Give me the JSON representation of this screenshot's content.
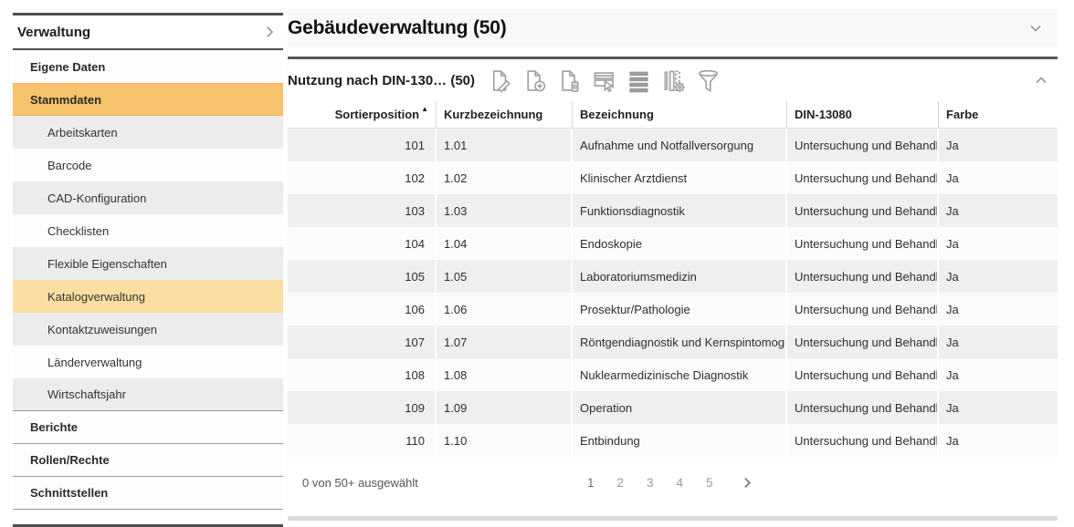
{
  "colors": {
    "selected_primary": "#f7c36d",
    "selected_secondary": "#fbdfa2",
    "row_alt_gray": "#efefef",
    "dark_rule": "#585858",
    "icon_gray": "#a3a3a3",
    "chevron_blue_gray": "#8fa0ae"
  },
  "sidebar": {
    "title": "Verwaltung",
    "items": [
      {
        "label": "Eigene Daten",
        "level": 1,
        "selected": false,
        "alt": false,
        "divider": false
      },
      {
        "label": "Stammdaten",
        "level": 1,
        "selected": true,
        "alt": false,
        "divider": false
      },
      {
        "label": "Arbeitskarten",
        "level": 2,
        "selected": false,
        "alt": true,
        "divider": false
      },
      {
        "label": "Barcode",
        "level": 2,
        "selected": false,
        "alt": false,
        "divider": false
      },
      {
        "label": "CAD-Konfiguration",
        "level": 2,
        "selected": false,
        "alt": true,
        "divider": false
      },
      {
        "label": "Checklisten",
        "level": 2,
        "selected": false,
        "alt": false,
        "divider": false
      },
      {
        "label": "Flexible Eigenschaften",
        "level": 2,
        "selected": false,
        "alt": true,
        "divider": false
      },
      {
        "label": "Katalogverwaltung",
        "level": 2,
        "selected": true,
        "alt": false,
        "divider": false
      },
      {
        "label": "Kontaktzuweisungen",
        "level": 2,
        "selected": false,
        "alt": true,
        "divider": false
      },
      {
        "label": "Länderverwaltung",
        "level": 2,
        "selected": false,
        "alt": false,
        "divider": false
      },
      {
        "label": "Wirtschaftsjahr",
        "level": 2,
        "selected": false,
        "alt": true,
        "divider": true
      },
      {
        "label": "Berichte",
        "level": 1,
        "selected": false,
        "alt": false,
        "divider": true
      },
      {
        "label": "Rollen/Rechte",
        "level": 1,
        "selected": false,
        "alt": false,
        "divider": true
      },
      {
        "label": "Schnittstellen",
        "level": 1,
        "selected": false,
        "alt": false,
        "divider": true
      }
    ]
  },
  "main": {
    "section_title": "Gebäudeverwaltung (50)",
    "panel": {
      "title": "Nutzung nach DIN-130… (50)",
      "toolbar_icons": [
        "edit-document-icon",
        "add-document-icon",
        "delete-document-icon",
        "select-row-icon",
        "rows-icon",
        "column-settings-icon",
        "filter-icon"
      ]
    },
    "table": {
      "columns": [
        {
          "label": "Sortierposition",
          "align": "right",
          "sorted": "asc"
        },
        {
          "label": "Kurzbezeichnung",
          "align": "left",
          "sorted": null
        },
        {
          "label": "Bezeichnung",
          "align": "left",
          "sorted": null
        },
        {
          "label": "DIN-13080",
          "align": "left",
          "sorted": null
        },
        {
          "label": "Farbe",
          "align": "left",
          "sorted": null
        }
      ],
      "rows": [
        [
          "101",
          "1.01",
          "Aufnahme und Notfallversorgung",
          "Untersuchung und Behandl...",
          "Ja"
        ],
        [
          "102",
          "1.02",
          "Klinischer Arztdienst",
          "Untersuchung und Behandl...",
          "Ja"
        ],
        [
          "103",
          "1.03",
          "Funktionsdiagnostik",
          "Untersuchung und Behandl...",
          "Ja"
        ],
        [
          "104",
          "1.04",
          "Endoskopie",
          "Untersuchung und Behandl...",
          "Ja"
        ],
        [
          "105",
          "1.05",
          "Laboratoriumsmedizin",
          "Untersuchung und Behandl...",
          "Ja"
        ],
        [
          "106",
          "1.06",
          "Prosektur/Pathologie",
          "Untersuchung und Behandl...",
          "Ja"
        ],
        [
          "107",
          "1.07",
          "Röntgendiagnostik und Kernspintomogr...",
          "Untersuchung und Behandl...",
          "Ja"
        ],
        [
          "108",
          "1.08",
          "Nuklearmedizinische Diagnostik",
          "Untersuchung und Behandl...",
          "Ja"
        ],
        [
          "109",
          "1.09",
          "Operation",
          "Untersuchung und Behandl...",
          "Ja"
        ],
        [
          "110",
          "1.10",
          "Entbindung",
          "Untersuchung und Behandl...",
          "Ja"
        ]
      ]
    },
    "footer": {
      "selection_text": "0 von 50+ ausgewählt",
      "pages": [
        "1",
        "2",
        "3",
        "4",
        "5"
      ],
      "active_page": "1"
    }
  }
}
